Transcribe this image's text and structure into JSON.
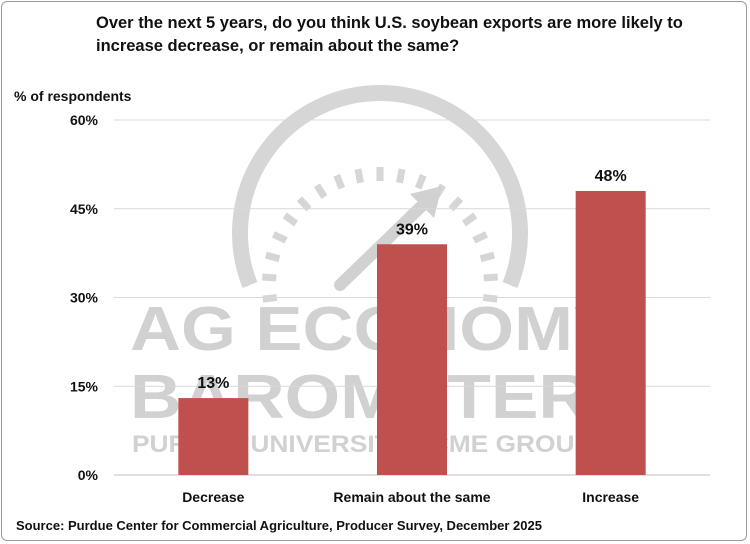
{
  "chart_data": {
    "type": "bar",
    "title": "Over the next 5 years, do you think U.S. soybean exports are more likely to increase decrease, or remain about the same?",
    "ylabel": "% of respondents",
    "xlabel": "",
    "categories": [
      "Decrease",
      "Remain about the same",
      "Increase"
    ],
    "values": [
      13,
      39,
      48
    ],
    "value_labels": [
      "13%",
      "39%",
      "48%"
    ],
    "ylim": [
      0,
      60
    ],
    "yticks": [
      0,
      15,
      30,
      45,
      60
    ],
    "ytick_labels": [
      "0%",
      "15%",
      "30%",
      "45%",
      "60%"
    ],
    "grid": true,
    "legend": "none",
    "bar_color": "#c0504d",
    "gridline_color": "#d9d9d9"
  },
  "source": "Source: Purdue Center for Commercial Agriculture, Producer Survey, December 2025",
  "watermark": {
    "line1": "AG ECONOMY",
    "line2": "BAROMETER",
    "line3": "PURDUE UNIVERSITY | CME GROUP"
  }
}
